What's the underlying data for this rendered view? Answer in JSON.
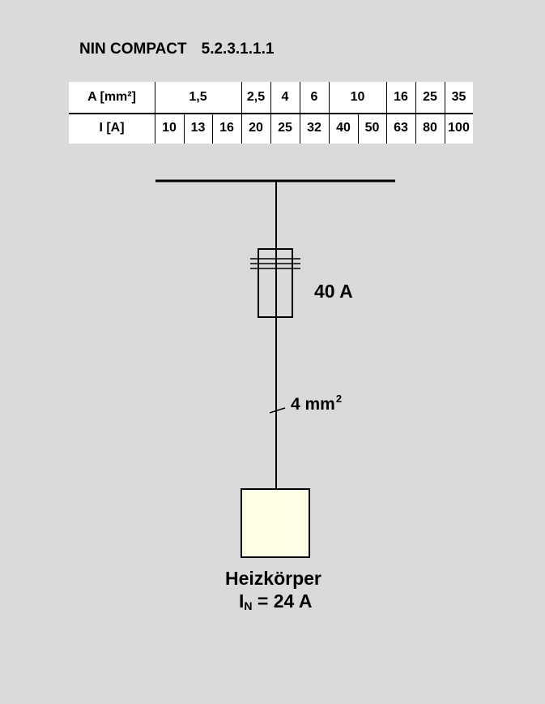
{
  "header": {
    "title": "NIN COMPACT",
    "section": "5.2.3.1.1.1"
  },
  "ref_table": {
    "row_a_label": "A [mm²]",
    "row_i_label": "I [A]",
    "cross_sections": [
      "1,5",
      "2,5",
      "4",
      "6",
      "10",
      "16",
      "25",
      "35"
    ],
    "currents": [
      "10",
      "13",
      "16",
      "20",
      "25",
      "32",
      "40",
      "50",
      "63",
      "80",
      "100"
    ]
  },
  "diagram": {
    "fuse_rating": "40 A",
    "cable_size": "4 mm",
    "cable_size_sup": "2",
    "load_name": "Heizkörper",
    "load_current_symbol": "I",
    "load_current_sub": "N",
    "load_current_value": " = 24 A",
    "load_fill": "#fefee7"
  }
}
